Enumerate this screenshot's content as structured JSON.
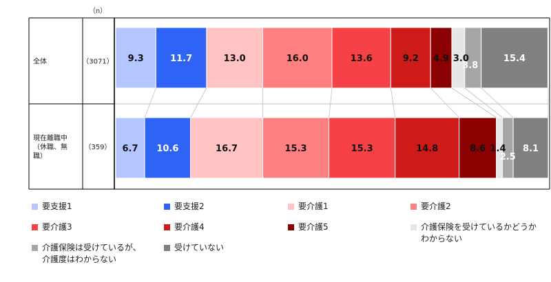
{
  "chart_data": {
    "type": "bar",
    "stacked": true,
    "orientation": "horizontal",
    "percent": true,
    "n_header": "（n）",
    "categories": [
      {
        "label": "全体",
        "n": "（3071）"
      },
      {
        "label": "現在離職中\n（休職、無\n職）",
        "n": "（359）"
      }
    ],
    "series": [
      {
        "name": "要支援1",
        "color": "#b4c6ff",
        "values": [
          9.3,
          6.7
        ],
        "value_labels": [
          "9.3",
          "6.7"
        ]
      },
      {
        "name": "要支援2",
        "color": "#2f63f5",
        "values": [
          11.7,
          10.6
        ],
        "value_labels": [
          "11.7",
          "10.6"
        ]
      },
      {
        "name": "要介護1",
        "color": "#ffc3c3",
        "values": [
          13.0,
          16.7
        ],
        "value_labels": [
          "13.0",
          "16.7"
        ]
      },
      {
        "name": "要介護2",
        "color": "#ff8080",
        "values": [
          16.0,
          15.3
        ],
        "value_labels": [
          "16.0",
          "15.3"
        ]
      },
      {
        "name": "要介護3",
        "color": "#f64146",
        "values": [
          13.6,
          15.3
        ],
        "value_labels": [
          "13.6",
          "15.3"
        ]
      },
      {
        "name": "要介護4",
        "color": "#cf1a1a",
        "values": [
          9.2,
          14.8
        ],
        "value_labels": [
          "9.2",
          "14.8"
        ]
      },
      {
        "name": "要介護5",
        "color": "#8b0000",
        "values": [
          4.9,
          8.6
        ],
        "value_labels": [
          "4.9",
          "8.6"
        ]
      },
      {
        "name": "介護保険を受けているかどうか\nわからない",
        "color": "#e6e6e6",
        "values": [
          3.0,
          1.4
        ],
        "value_labels": [
          "3.0",
          "1.4"
        ]
      },
      {
        "name": "介護保険は受けているが、\n介護度はわからない",
        "color": "#a6a6a6",
        "values": [
          3.8,
          2.5
        ],
        "value_labels": [
          "3.8",
          "2.5"
        ]
      },
      {
        "name": "受けていない",
        "color": "#808080",
        "values": [
          15.4,
          8.1
        ],
        "value_labels": [
          "15.4",
          "8.1"
        ]
      }
    ],
    "xlim": [
      0,
      100
    ],
    "legend_position": "bottom"
  }
}
